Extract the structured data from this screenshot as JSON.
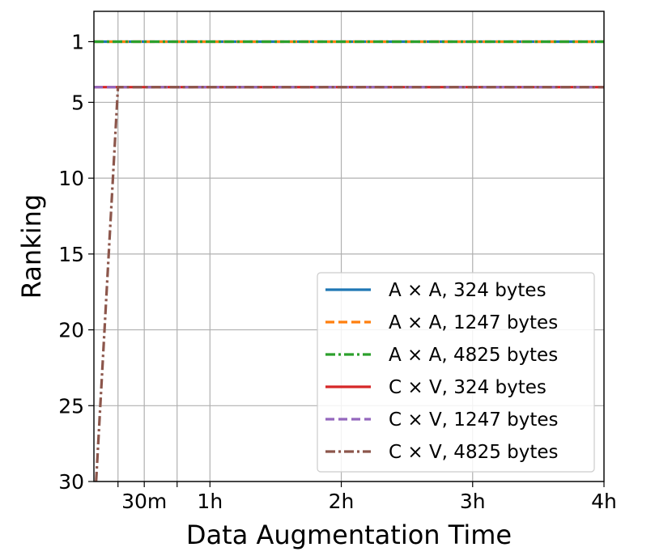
{
  "chart_data": {
    "type": "line",
    "title": "",
    "xlabel": "Data Augmentation Time",
    "ylabel": "Ranking",
    "x_unit": "minutes",
    "x_ticks": [
      {
        "value": 18,
        "label": ""
      },
      {
        "value": 30,
        "label": "30m"
      },
      {
        "value": 45,
        "label": ""
      },
      {
        "value": 60,
        "label": "1h"
      },
      {
        "value": 120,
        "label": "2h"
      },
      {
        "value": 180,
        "label": "3h"
      },
      {
        "value": 240,
        "label": "4h"
      }
    ],
    "xlim": [
      7,
      240
    ],
    "y_ticks": [
      1,
      5,
      10,
      15,
      20,
      25,
      30
    ],
    "ylim": [
      -1,
      30
    ],
    "y_inverted": true,
    "grid": true,
    "legend_position": "bottom-right",
    "series": [
      {
        "name": "A × A, 324 bytes",
        "color": "#1f77b4",
        "dash": "solid",
        "x": [
          7,
          240
        ],
        "y": [
          1,
          1
        ]
      },
      {
        "name": "A × A, 1247 bytes",
        "color": "#ff7f0e",
        "dash": "dashed",
        "x": [
          7,
          240
        ],
        "y": [
          1,
          1
        ]
      },
      {
        "name": "A × A, 4825 bytes",
        "color": "#2ca02c",
        "dash": "dashdot",
        "x": [
          7,
          240
        ],
        "y": [
          1,
          1
        ]
      },
      {
        "name": "C × V, 324 bytes",
        "color": "#d62728",
        "dash": "solid",
        "x": [
          7,
          240
        ],
        "y": [
          4,
          4
        ]
      },
      {
        "name": "C × V, 1247 bytes",
        "color": "#9467bd",
        "dash": "dashed",
        "x": [
          7,
          240
        ],
        "y": [
          4,
          4
        ]
      },
      {
        "name": "C × V, 4825 bytes",
        "color": "#8c564b",
        "dash": "dashdot",
        "x": [
          8,
          18,
          240
        ],
        "y": [
          30,
          4,
          4
        ]
      }
    ]
  }
}
